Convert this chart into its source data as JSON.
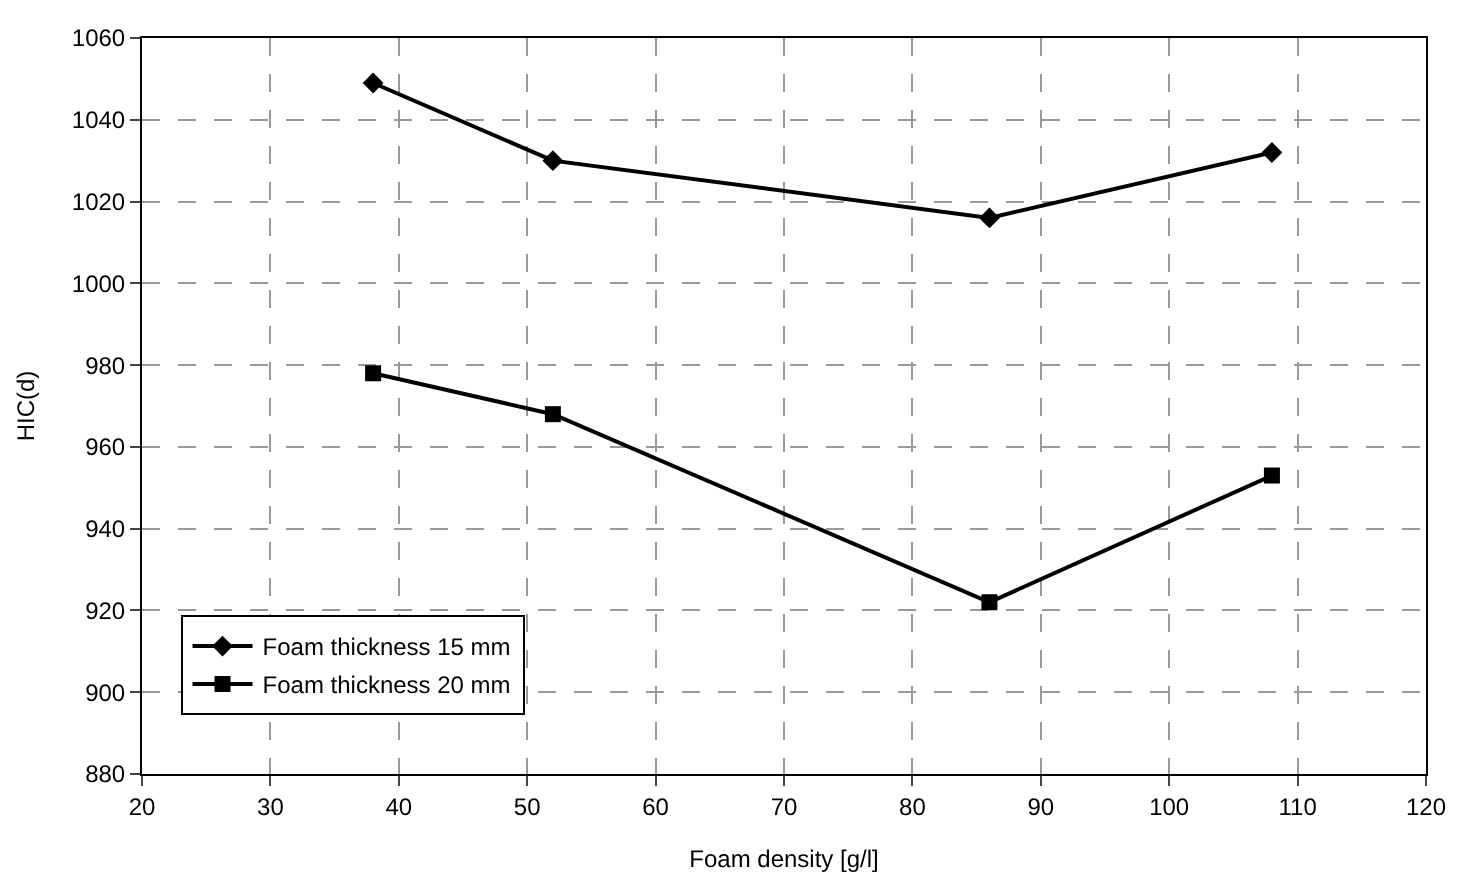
{
  "chart_data": {
    "type": "line",
    "xlabel": "Foam density [g/l]",
    "ylabel": "HIC(d)",
    "xlim": [
      20,
      120
    ],
    "xticks": [
      20,
      30,
      40,
      50,
      60,
      70,
      80,
      90,
      100,
      110,
      120
    ],
    "ylim": [
      880,
      1060
    ],
    "yticks": [
      880,
      900,
      920,
      940,
      960,
      980,
      1000,
      1020,
      1040,
      1060
    ],
    "grid": true,
    "legend": "bottom left",
    "line_style": "solid",
    "series": [
      {
        "name": "Foam thickness 15 mm",
        "color": "#000000",
        "marker": "diamond",
        "x": [
          38,
          52,
          86,
          108
        ],
        "values": [
          1049,
          1030,
          1016,
          1032
        ]
      },
      {
        "name": "Foam thickness 20 mm",
        "color": "#000000",
        "marker": "square",
        "x": [
          38,
          52,
          86,
          108
        ],
        "values": [
          978,
          968,
          922,
          953
        ]
      }
    ]
  }
}
